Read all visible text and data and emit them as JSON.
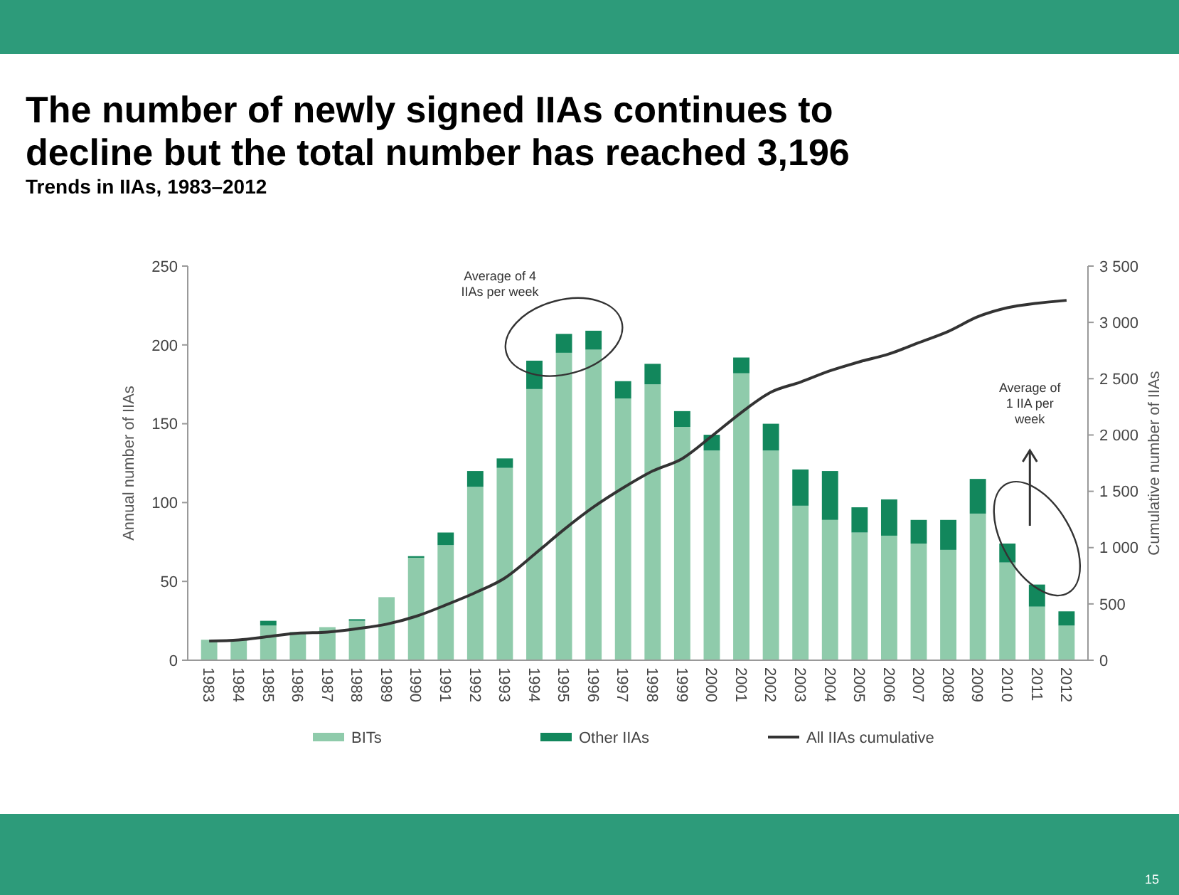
{
  "chart_data": {
    "type": "bar",
    "title": "The number of newly signed IIAs  continues to decline but the total number has reached 3,196",
    "subtitle": "Trends in IIAs, 1983–2012",
    "ylabel": "Annual number of IIAs",
    "y2label": "Cumulative number of IIAs",
    "categories": [
      "1983",
      "1984",
      "1985",
      "1986",
      "1987",
      "1988",
      "1989",
      "1990",
      "1991",
      "1992",
      "1993",
      "1994",
      "1995",
      "1996",
      "1997",
      "1998",
      "1999",
      "2000",
      "2001",
      "2002",
      "2003",
      "2004",
      "2005",
      "2006",
      "2007",
      "2008",
      "2009",
      "2010",
      "2011",
      "2012"
    ],
    "stacked": true,
    "series": [
      {
        "name": "BITs",
        "color": "#8fcbab",
        "values": [
          13,
          13,
          22,
          18,
          21,
          25,
          40,
          65,
          73,
          110,
          122,
          172,
          195,
          197,
          166,
          175,
          148,
          133,
          182,
          133,
          98,
          89,
          81,
          79,
          74,
          70,
          93,
          62,
          34,
          22
        ]
      },
      {
        "name": "Other IIAs",
        "color": "#12875c",
        "values": [
          0,
          0,
          3,
          0,
          0,
          1,
          0,
          1,
          8,
          10,
          6,
          18,
          12,
          12,
          11,
          13,
          10,
          10,
          10,
          17,
          23,
          31,
          16,
          23,
          15,
          19,
          22,
          12,
          14,
          9
        ]
      },
      {
        "name": "All IIAs cumulative",
        "type": "line",
        "axis": "y2",
        "color": "#333333",
        "values": [
          170,
          180,
          210,
          240,
          250,
          280,
          320,
          390,
          490,
          600,
          730,
          940,
          1160,
          1360,
          1530,
          1680,
          1790,
          1990,
          2200,
          2380,
          2470,
          2570,
          2650,
          2720,
          2820,
          2920,
          3050,
          3130,
          3170,
          3196
        ]
      }
    ],
    "ylim": [
      0,
      250
    ],
    "yticks": [
      0,
      50,
      100,
      150,
      200,
      250
    ],
    "y2lim": [
      0,
      3500
    ],
    "y2ticks": [
      0,
      500,
      {
        "value": 1000,
        "label": "1 000"
      },
      {
        "value": 1500,
        "label": "1 500"
      },
      {
        "value": 2000,
        "label": "2 000"
      },
      {
        "value": 2500,
        "label": "2 500"
      },
      {
        "value": 3000,
        "label": "3 000"
      },
      {
        "value": 3500,
        "label": "3 500"
      }
    ],
    "legend": "bottom",
    "grid": false,
    "annotations": [
      "Average of 4 IIAs per week",
      "Average of 1 IIA per week",
      "15"
    ]
  }
}
